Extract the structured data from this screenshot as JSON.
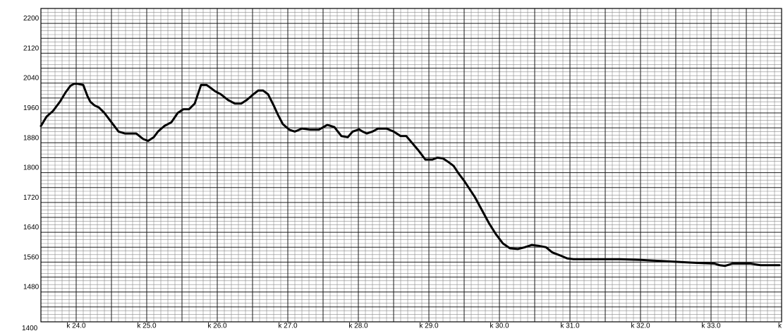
{
  "chart_data": {
    "type": "line",
    "title": "",
    "xlabel": "",
    "ylabel": "",
    "grid": true,
    "xlim": [
      23.5,
      34.0
    ],
    "ylim": [
      1400,
      2240
    ],
    "y_ticks": [
      {
        "value": 2200,
        "label": "2200"
      },
      {
        "value": 2120,
        "label": "2120"
      },
      {
        "value": 2040,
        "label": "2040"
      },
      {
        "value": 1960,
        "label": "1960"
      },
      {
        "value": 1880,
        "label": "1880"
      },
      {
        "value": 1800,
        "label": "1800"
      },
      {
        "value": 1720,
        "label": "1720"
      },
      {
        "value": 1640,
        "label": "1640"
      },
      {
        "value": 1560,
        "label": "1560"
      },
      {
        "value": 1480,
        "label": "1480"
      },
      {
        "value": 1400,
        "label": "1400"
      }
    ],
    "x_ticks": [
      {
        "value": 24.0,
        "label": "k 24.0"
      },
      {
        "value": 25.0,
        "label": "k 25.0"
      },
      {
        "value": 26.0,
        "label": "k 26.0"
      },
      {
        "value": 27.0,
        "label": "k 27.0"
      },
      {
        "value": 28.0,
        "label": "k 28.0"
      },
      {
        "value": 29.0,
        "label": "k 29.0"
      },
      {
        "value": 30.0,
        "label": "k 30.0"
      },
      {
        "value": 31.0,
        "label": "k 31.0"
      },
      {
        "value": 32.0,
        "label": "k 32.0"
      },
      {
        "value": 33.0,
        "label": "k 33.0"
      },
      {
        "value": 34.0,
        "label": "k"
      }
    ],
    "series": [
      {
        "color": "#000000",
        "x": [
          23.5,
          23.58,
          23.67,
          23.77,
          23.85,
          23.92,
          23.97,
          24.02,
          24.1,
          24.16,
          24.2,
          24.26,
          24.32,
          24.4,
          24.5,
          24.6,
          24.69,
          24.76,
          24.85,
          24.95,
          25.02,
          25.1,
          25.16,
          25.25,
          25.35,
          25.44,
          25.52,
          25.6,
          25.68,
          25.77,
          25.85,
          25.92,
          25.97,
          26.05,
          26.15,
          26.25,
          26.34,
          26.42,
          26.5,
          26.58,
          26.65,
          26.72,
          26.8,
          26.86,
          26.93,
          27.02,
          27.1,
          27.2,
          27.32,
          27.44,
          27.56,
          27.66,
          27.76,
          27.85,
          27.92,
          28.01,
          28.06,
          28.12,
          28.2,
          28.28,
          28.4,
          28.5,
          28.6,
          28.68,
          28.76,
          28.85,
          28.95,
          29.05,
          29.12,
          29.2,
          29.28,
          29.35,
          29.42,
          29.5,
          29.57,
          29.65,
          29.75,
          29.85,
          29.95,
          30.05,
          30.15,
          30.26,
          30.36,
          30.46,
          30.55,
          30.66,
          30.75,
          30.86,
          30.96,
          31.05,
          31.16,
          31.28,
          31.45,
          31.7,
          32.0,
          32.4,
          32.8,
          33.05,
          33.12,
          33.2,
          33.3,
          33.45,
          33.56,
          33.7,
          33.85,
          33.97
        ],
        "y": [
          1925,
          1950,
          1965,
          1990,
          2015,
          2033,
          2038,
          2038,
          2035,
          2005,
          1990,
          1980,
          1975,
          1960,
          1935,
          1910,
          1905,
          1905,
          1905,
          1890,
          1885,
          1895,
          1910,
          1925,
          1935,
          1960,
          1970,
          1970,
          1985,
          2035,
          2035,
          2025,
          2018,
          2010,
          1995,
          1985,
          1985,
          1995,
          2008,
          2020,
          2020,
          2010,
          1980,
          1955,
          1930,
          1915,
          1910,
          1918,
          1915,
          1915,
          1928,
          1922,
          1898,
          1895,
          1910,
          1916,
          1910,
          1905,
          1910,
          1918,
          1918,
          1910,
          1898,
          1898,
          1880,
          1860,
          1835,
          1835,
          1840,
          1838,
          1828,
          1818,
          1798,
          1778,
          1758,
          1735,
          1700,
          1665,
          1635,
          1610,
          1597,
          1595,
          1600,
          1606,
          1604,
          1600,
          1586,
          1578,
          1570,
          1568,
          1568,
          1568,
          1568,
          1568,
          1566,
          1562,
          1558,
          1556,
          1552,
          1550,
          1556,
          1556,
          1556,
          1552,
          1552,
          1552
        ]
      }
    ]
  }
}
